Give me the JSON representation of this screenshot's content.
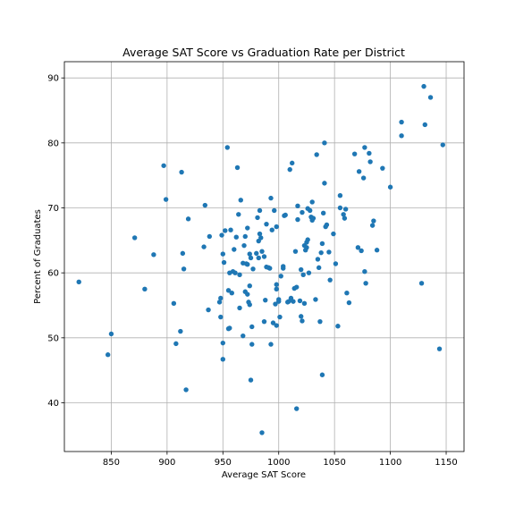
{
  "chart_data": {
    "type": "scatter",
    "title": "Average SAT Score vs Graduation Rate per District",
    "xlabel": "Average SAT Score",
    "ylabel": "Percent of Graduates",
    "xlim": [
      808,
      1166
    ],
    "ylim": [
      32.5,
      92.5
    ],
    "xticks": [
      850,
      900,
      950,
      1000,
      1050,
      1100,
      1150
    ],
    "yticks": [
      40,
      50,
      60,
      70,
      80,
      90
    ],
    "grid": true,
    "marker_color": "#1f77b4",
    "series": [
      {
        "points": [
          [
            821,
            58.6
          ],
          [
            847,
            47.4
          ],
          [
            850,
            50.6
          ],
          [
            871,
            65.4
          ],
          [
            880,
            57.5
          ],
          [
            888,
            62.8
          ],
          [
            897,
            76.5
          ],
          [
            899,
            71.3
          ],
          [
            906,
            55.3
          ],
          [
            908,
            49.1
          ],
          [
            912,
            51.0
          ],
          [
            913,
            75.5
          ],
          [
            914,
            63.0
          ],
          [
            915,
            60.6
          ],
          [
            917,
            42.0
          ],
          [
            919,
            68.3
          ],
          [
            933,
            64.0
          ],
          [
            934,
            70.4
          ],
          [
            937,
            54.3
          ],
          [
            938,
            65.6
          ],
          [
            947,
            55.5
          ],
          [
            948,
            56.1
          ],
          [
            948,
            53.2
          ],
          [
            949,
            65.8
          ],
          [
            950,
            62.9
          ],
          [
            951,
            61.6
          ],
          [
            950,
            49.2
          ],
          [
            950,
            46.7
          ],
          [
            952,
            66.5
          ],
          [
            954,
            79.3
          ],
          [
            955,
            51.4
          ],
          [
            955,
            57.3
          ],
          [
            956,
            51.5
          ],
          [
            956,
            60.0
          ],
          [
            957,
            66.6
          ],
          [
            958,
            56.9
          ],
          [
            959,
            60.2
          ],
          [
            960,
            63.6
          ],
          [
            961,
            60.0
          ],
          [
            962,
            65.5
          ],
          [
            963,
            76.2
          ],
          [
            964,
            69.0
          ],
          [
            965,
            59.7
          ],
          [
            965,
            54.6
          ],
          [
            966,
            71.2
          ],
          [
            968,
            50.3
          ],
          [
            968,
            61.5
          ],
          [
            969,
            64.2
          ],
          [
            970,
            57.1
          ],
          [
            970,
            65.6
          ],
          [
            971,
            61.4
          ],
          [
            972,
            66.9
          ],
          [
            972,
            56.7
          ],
          [
            972,
            61.3
          ],
          [
            973,
            55.5
          ],
          [
            974,
            55.1
          ],
          [
            974,
            62.9
          ],
          [
            974,
            58.0
          ],
          [
            975,
            43.5
          ],
          [
            975,
            62.3
          ],
          [
            976,
            51.7
          ],
          [
            976,
            49.0
          ],
          [
            977,
            60.6
          ],
          [
            980,
            63.0
          ],
          [
            981,
            68.5
          ],
          [
            982,
            64.9
          ],
          [
            982,
            62.3
          ],
          [
            983,
            69.6
          ],
          [
            983,
            66.0
          ],
          [
            984,
            65.4
          ],
          [
            985,
            35.4
          ],
          [
            985,
            63.3
          ],
          [
            987,
            62.5
          ],
          [
            987,
            52.5
          ],
          [
            988,
            55.8
          ],
          [
            989,
            67.5
          ],
          [
            989,
            60.9
          ],
          [
            991,
            60.8
          ],
          [
            992,
            60.7
          ],
          [
            993,
            71.5
          ],
          [
            993,
            49.0
          ],
          [
            994,
            66.6
          ],
          [
            995,
            52.3
          ],
          [
            996,
            69.6
          ],
          [
            997,
            55.2
          ],
          [
            998,
            67.1
          ],
          [
            998,
            58.2
          ],
          [
            998,
            57.5
          ],
          [
            998,
            51.9
          ],
          [
            1000,
            55.6
          ],
          [
            1000,
            55.9
          ],
          [
            1001,
            53.2
          ],
          [
            1002,
            59.5
          ],
          [
            1004,
            61.0
          ],
          [
            1004,
            60.7
          ],
          [
            1005,
            68.8
          ],
          [
            1006,
            68.9
          ],
          [
            1008,
            55.5
          ],
          [
            1009,
            55.6
          ],
          [
            1010,
            75.9
          ],
          [
            1011,
            56.1
          ],
          [
            1012,
            76.9
          ],
          [
            1013,
            55.6
          ],
          [
            1014,
            57.6
          ],
          [
            1015,
            63.3
          ],
          [
            1016,
            39.1
          ],
          [
            1016,
            57.8
          ],
          [
            1017,
            70.3
          ],
          [
            1017,
            68.2
          ],
          [
            1019,
            55.7
          ],
          [
            1020,
            60.5
          ],
          [
            1020,
            53.3
          ],
          [
            1021,
            52.6
          ],
          [
            1021,
            69.3
          ],
          [
            1022,
            59.7
          ],
          [
            1023,
            55.3
          ],
          [
            1023,
            64.2
          ],
          [
            1024,
            63.5
          ],
          [
            1025,
            64.7
          ],
          [
            1025,
            63.9
          ],
          [
            1026,
            69.9
          ],
          [
            1026,
            65.1
          ],
          [
            1027,
            60.0
          ],
          [
            1028,
            69.6
          ],
          [
            1029,
            68.6
          ],
          [
            1030,
            68.1
          ],
          [
            1030,
            70.9
          ],
          [
            1031,
            68.4
          ],
          [
            1033,
            55.9
          ],
          [
            1034,
            78.2
          ],
          [
            1035,
            62.1
          ],
          [
            1036,
            60.8
          ],
          [
            1037,
            52.5
          ],
          [
            1038,
            63.1
          ],
          [
            1039,
            64.5
          ],
          [
            1039,
            44.3
          ],
          [
            1040,
            69.2
          ],
          [
            1041,
            80.0
          ],
          [
            1041,
            73.8
          ],
          [
            1042,
            67.1
          ],
          [
            1043,
            67.4
          ],
          [
            1045,
            63.2
          ],
          [
            1046,
            58.9
          ],
          [
            1049,
            66.0
          ],
          [
            1051,
            61.4
          ],
          [
            1053,
            51.8
          ],
          [
            1055,
            70.0
          ],
          [
            1055,
            71.9
          ],
          [
            1058,
            69.0
          ],
          [
            1059,
            68.4
          ],
          [
            1060,
            69.8
          ],
          [
            1061,
            56.9
          ],
          [
            1063,
            55.4
          ],
          [
            1068,
            78.3
          ],
          [
            1071,
            63.9
          ],
          [
            1072,
            75.6
          ],
          [
            1074,
            63.4
          ],
          [
            1076,
            74.6
          ],
          [
            1077,
            60.2
          ],
          [
            1077,
            79.3
          ],
          [
            1078,
            58.4
          ],
          [
            1081,
            78.4
          ],
          [
            1082,
            77.1
          ],
          [
            1084,
            67.3
          ],
          [
            1085,
            68.0
          ],
          [
            1088,
            63.5
          ],
          [
            1093,
            76.1
          ],
          [
            1100,
            73.2
          ],
          [
            1110,
            83.2
          ],
          [
            1110,
            81.1
          ],
          [
            1128,
            58.4
          ],
          [
            1130,
            88.7
          ],
          [
            1131,
            82.8
          ],
          [
            1136,
            87.0
          ],
          [
            1144,
            48.3
          ],
          [
            1147,
            79.7
          ]
        ]
      }
    ]
  }
}
